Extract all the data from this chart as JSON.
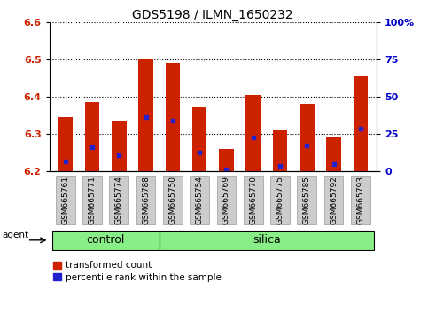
{
  "title": "GDS5198 / ILMN_1650232",
  "samples": [
    "GSM665761",
    "GSM665771",
    "GSM665774",
    "GSM665788",
    "GSM665750",
    "GSM665754",
    "GSM665769",
    "GSM665770",
    "GSM665775",
    "GSM665785",
    "GSM665792",
    "GSM665793"
  ],
  "groups": [
    "control",
    "control",
    "control",
    "control",
    "silica",
    "silica",
    "silica",
    "silica",
    "silica",
    "silica",
    "silica",
    "silica"
  ],
  "bar_tops": [
    6.345,
    6.385,
    6.335,
    6.5,
    6.49,
    6.37,
    6.26,
    6.405,
    6.31,
    6.38,
    6.29,
    6.455
  ],
  "bar_base": 6.2,
  "blue_positions": [
    6.225,
    6.265,
    6.243,
    6.345,
    6.335,
    6.25,
    6.205,
    6.29,
    6.215,
    6.27,
    6.22,
    6.315
  ],
  "ylim": [
    6.2,
    6.6
  ],
  "ytick_values_left": [
    6.2,
    6.3,
    6.4,
    6.5,
    6.6
  ],
  "ytick_labels_left": [
    "6.2",
    "6.3",
    "6.4",
    "6.5",
    "6.6"
  ],
  "ytick_values_right": [
    0,
    25,
    50,
    75,
    100
  ],
  "ytick_labels_right": [
    "0",
    "25",
    "50",
    "75",
    "100%"
  ],
  "bar_color": "#cc2200",
  "blue_color": "#2222cc",
  "control_color": "#88ee88",
  "silica_color": "#88ee88",
  "bar_width": 0.55,
  "agent_label": "agent",
  "left_tick_color": "#cc2200",
  "right_tick_color": "#0000cc",
  "grid_color": "#000000",
  "tick_bg_color": "#cccccc",
  "ctrl_count": 4,
  "silica_count": 8
}
